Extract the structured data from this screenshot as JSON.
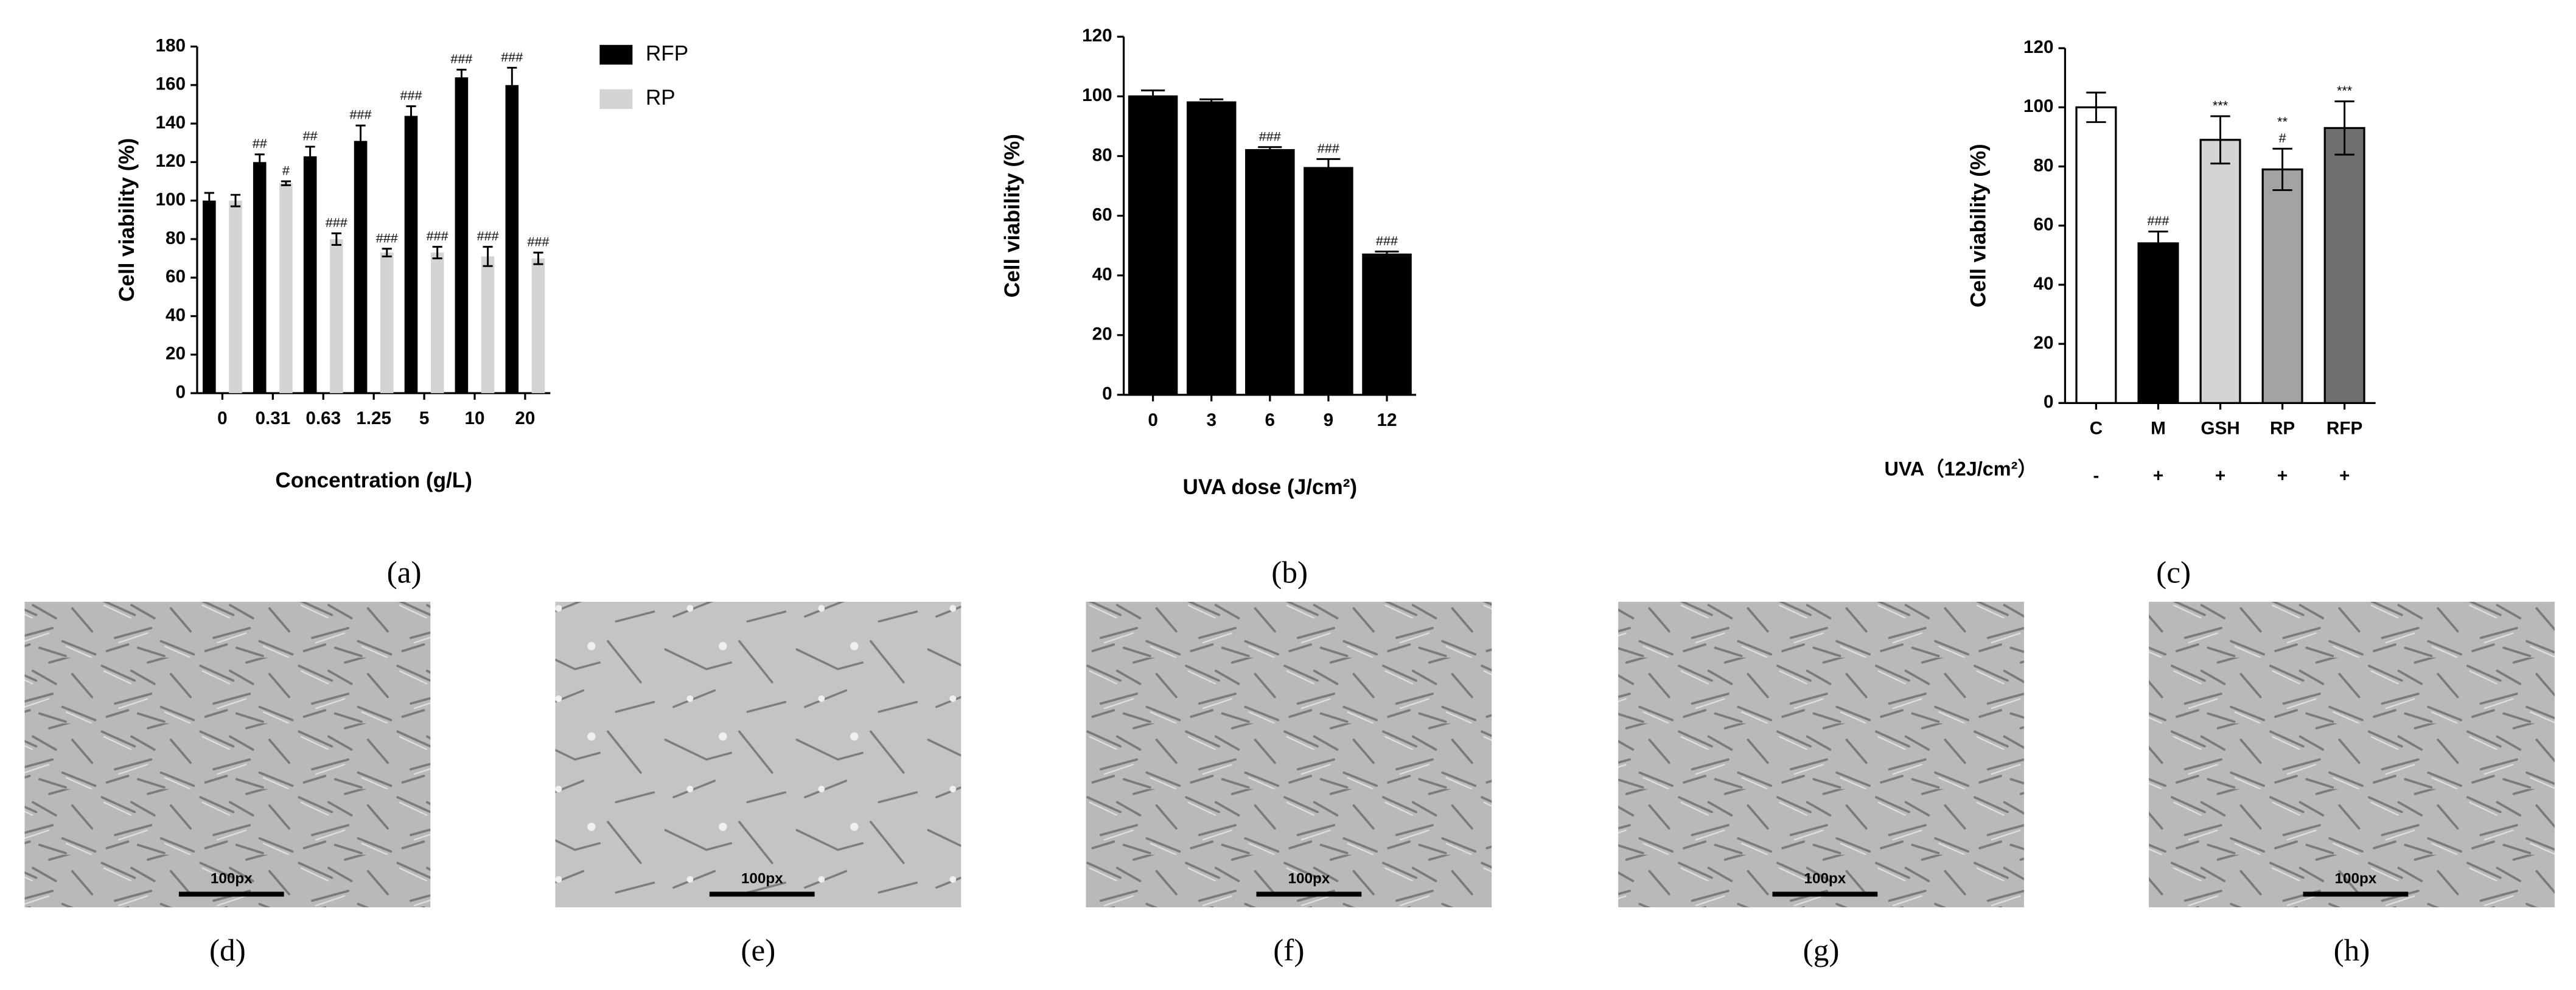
{
  "chart_data": [
    {
      "type": "bar",
      "panel_label": "(a)",
      "y_label": "Cell viability (%)",
      "x_label": "Concentration (g/L)",
      "categories": [
        "0",
        "0.31",
        "0.63",
        "1.25",
        "5",
        "10",
        "20"
      ],
      "series": [
        {
          "name": "RFP",
          "color": "#000000",
          "values": [
            100,
            120,
            123,
            131,
            144,
            164,
            160
          ],
          "errors": [
            4,
            4,
            5,
            8,
            5,
            4,
            9
          ],
          "annotations": [
            null,
            "##",
            "##",
            "###",
            "###",
            "###",
            "###"
          ]
        },
        {
          "name": "RP",
          "color": "#d4d4d4",
          "values": [
            100,
            109,
            80,
            73,
            73,
            71,
            70
          ],
          "errors": [
            3,
            1,
            3,
            2,
            3,
            5,
            3
          ],
          "annotations": [
            null,
            "#",
            "###",
            "###",
            "###",
            "###",
            "###"
          ]
        }
      ],
      "ylim": [
        0,
        180
      ],
      "yticks": [
        0,
        20,
        40,
        60,
        80,
        100,
        120,
        140,
        160,
        180
      ],
      "legend": "outside-right"
    },
    {
      "type": "bar",
      "panel_label": "(b)",
      "y_label": "Cell viability (%)",
      "x_label": "UVA dose (J/cm²)",
      "categories": [
        "0",
        "3",
        "6",
        "9",
        "12"
      ],
      "color": "#000000",
      "values": [
        100,
        98,
        82,
        76,
        47
      ],
      "errors": [
        2,
        1,
        1,
        3,
        1
      ],
      "annotations": [
        null,
        null,
        "###",
        "###",
        "###"
      ],
      "ylim": [
        0,
        120
      ],
      "yticks": [
        0,
        20,
        40,
        60,
        80,
        100,
        120
      ]
    },
    {
      "type": "bar",
      "panel_label": "(c)",
      "y_label": "Cell viability (%)",
      "categories": [
        "C",
        "M",
        "GSH",
        "RP",
        "RFP"
      ],
      "colors": [
        "#ffffff",
        "#000000",
        "#d4d4d4",
        "#a3a3a3",
        "#6f6f6f"
      ],
      "values": [
        100,
        54,
        89,
        79,
        93
      ],
      "errors": [
        5,
        4,
        8,
        7,
        9
      ],
      "annotations": [
        null,
        [
          "###"
        ],
        [
          "***"
        ],
        [
          "**",
          "#"
        ],
        [
          "***"
        ]
      ],
      "row_label": "UVA（12J/cm²）",
      "row_values": [
        "-",
        "+",
        "+",
        "+",
        "+"
      ],
      "ylim": [
        0,
        120
      ],
      "yticks": [
        0,
        20,
        40,
        60,
        80,
        100,
        120
      ]
    }
  ],
  "micrographs": [
    {
      "label": "(d)",
      "scale_bar": "100px"
    },
    {
      "label": "(e)",
      "scale_bar": "100px"
    },
    {
      "label": "(f)",
      "scale_bar": "100px"
    },
    {
      "label": "(g)",
      "scale_bar": "100px"
    },
    {
      "label": "(h)",
      "scale_bar": "100px"
    }
  ]
}
